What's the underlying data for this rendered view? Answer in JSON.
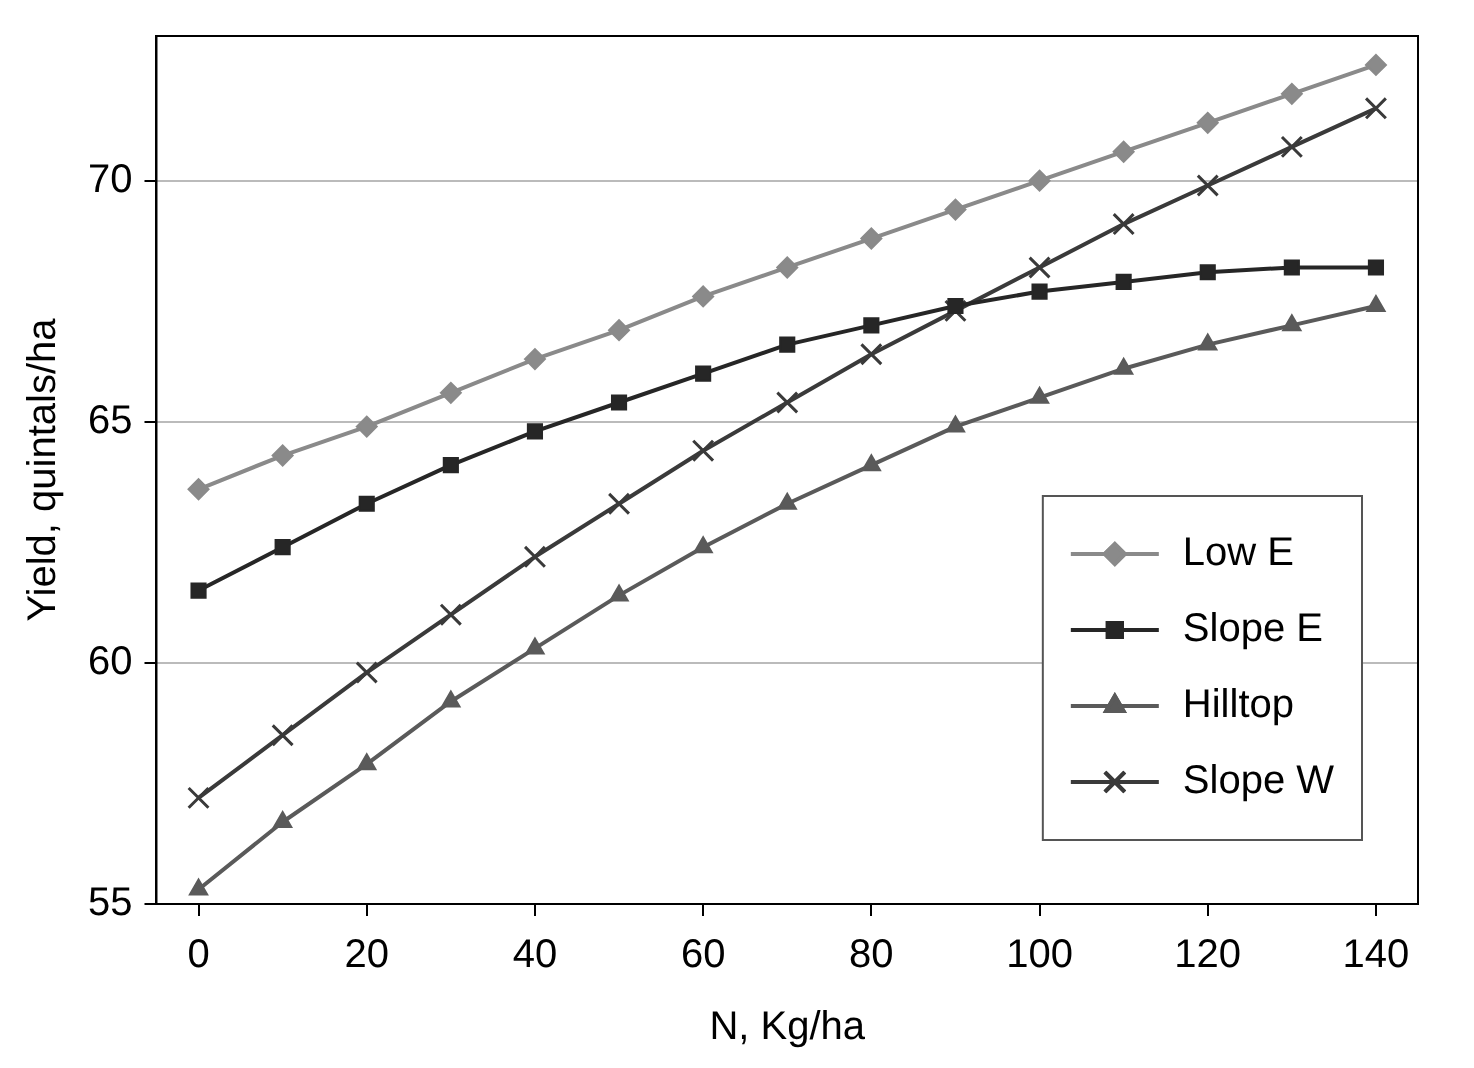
{
  "chart_data": {
    "type": "line",
    "xlabel": "N, Kg/ha",
    "ylabel": "Yield, quintals/ha",
    "x": [
      0,
      10,
      20,
      30,
      40,
      50,
      60,
      70,
      80,
      90,
      100,
      110,
      120,
      130,
      140
    ],
    "xlim": [
      -5,
      145
    ],
    "xticks": [
      0,
      20,
      40,
      60,
      80,
      100,
      120,
      140
    ],
    "ylim": [
      55,
      73
    ],
    "yticks": [
      55,
      60,
      65,
      70
    ],
    "grid": "y",
    "legend": "bottom right",
    "line_style": "solid",
    "series": [
      {
        "name": "Low E",
        "color": "#8a8a8a",
        "marker": "diamond",
        "values": [
          63.6,
          64.3,
          64.9,
          65.6,
          66.3,
          66.9,
          67.6,
          68.2,
          68.8,
          69.4,
          70.0,
          70.6,
          71.2,
          71.8,
          72.4
        ]
      },
      {
        "name": "Slope E",
        "color": "#262626",
        "marker": "square",
        "values": [
          61.5,
          62.4,
          63.3,
          64.1,
          64.8,
          65.4,
          66.0,
          66.6,
          67.0,
          67.4,
          67.7,
          67.9,
          68.1,
          68.2,
          68.2
        ]
      },
      {
        "name": "Hilltop",
        "color": "#5a5a5a",
        "marker": "triangle",
        "values": [
          55.3,
          56.7,
          57.9,
          59.2,
          60.3,
          61.4,
          62.4,
          63.3,
          64.1,
          64.9,
          65.5,
          66.1,
          66.6,
          67.0,
          67.4
        ]
      },
      {
        "name": "Slope W",
        "color": "#3a3a3a",
        "marker": "cross",
        "values": [
          57.2,
          58.5,
          59.8,
          61.0,
          62.2,
          63.3,
          64.4,
          65.4,
          66.4,
          67.3,
          68.2,
          69.1,
          69.9,
          70.7,
          71.5
        ]
      }
    ]
  }
}
